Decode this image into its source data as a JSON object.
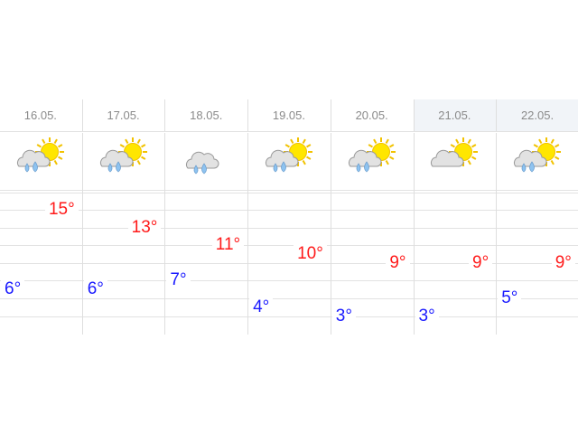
{
  "colors": {
    "high": "#ff1a1a",
    "low": "#1a1aff",
    "highlight_header": "#f1f4f8"
  },
  "days": [
    {
      "date": "16.05.",
      "icon": "cloud-rain-sun-icon",
      "high": "15°",
      "low": "6°",
      "high_value": 15,
      "low_value": 6,
      "highlight": false
    },
    {
      "date": "17.05.",
      "icon": "cloud-rain-sun-icon",
      "high": "13°",
      "low": "6°",
      "high_value": 13,
      "low_value": 6,
      "highlight": false
    },
    {
      "date": "18.05.",
      "icon": "cloud-rain-icon",
      "high": "11°",
      "low": "7°",
      "high_value": 11,
      "low_value": 7,
      "highlight": false
    },
    {
      "date": "19.05.",
      "icon": "cloud-rain-sun-icon",
      "high": "10°",
      "low": "4°",
      "high_value": 10,
      "low_value": 4,
      "highlight": false
    },
    {
      "date": "20.05.",
      "icon": "cloud-rain-sun-icon",
      "high": "9°",
      "low": "3°",
      "high_value": 9,
      "low_value": 3,
      "highlight": false
    },
    {
      "date": "21.05.",
      "icon": "cloud-sun-icon",
      "high": "9°",
      "low": "3°",
      "high_value": 9,
      "low_value": 3,
      "highlight": true
    },
    {
      "date": "22.05.",
      "icon": "cloud-rain-sun-icon",
      "high": "9°",
      "low": "5°",
      "high_value": 9,
      "low_value": 5,
      "highlight": true
    }
  ]
}
